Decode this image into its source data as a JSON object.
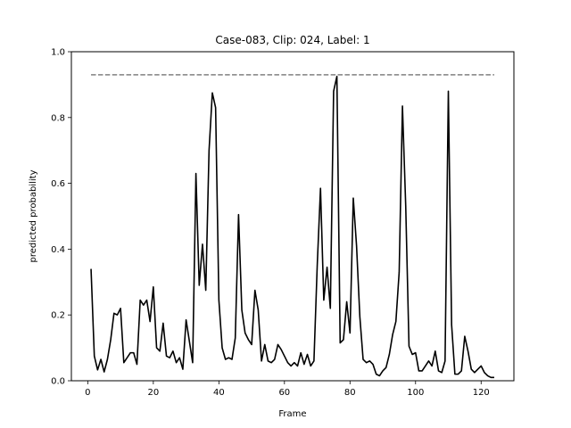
{
  "chart_data": {
    "type": "line",
    "title": "Case-083, Clip: 024, Label: 1",
    "xlabel": "Frame",
    "ylabel": "predicted probability",
    "xlim": [
      -5,
      130
    ],
    "ylim": [
      0.0,
      1.0
    ],
    "xticks": [
      0,
      20,
      40,
      60,
      80,
      100,
      120
    ],
    "yticks": [
      0.0,
      0.2,
      0.4,
      0.6,
      0.8,
      1.0
    ],
    "grid": false,
    "series": [
      {
        "color": "#000000",
        "x": [
          1,
          2,
          3,
          4,
          5,
          6,
          7,
          8,
          9,
          10,
          11,
          12,
          13,
          14,
          15,
          16,
          17,
          18,
          19,
          20,
          21,
          22,
          23,
          24,
          25,
          26,
          27,
          28,
          29,
          30,
          31,
          32,
          33,
          34,
          35,
          36,
          37,
          38,
          39,
          40,
          41,
          42,
          43,
          44,
          45,
          46,
          47,
          48,
          49,
          50,
          51,
          52,
          53,
          54,
          55,
          56,
          57,
          58,
          59,
          60,
          61,
          62,
          63,
          64,
          65,
          66,
          67,
          68,
          69,
          70,
          71,
          72,
          73,
          74,
          75,
          76,
          77,
          78,
          79,
          80,
          81,
          82,
          83,
          84,
          85,
          86,
          87,
          88,
          89,
          90,
          91,
          92,
          93,
          94,
          95,
          96,
          97,
          98,
          99,
          100,
          101,
          102,
          103,
          104,
          105,
          106,
          107,
          108,
          109,
          110,
          111,
          112,
          113,
          114,
          115,
          116,
          117,
          118,
          119,
          120,
          121,
          122,
          123,
          124
        ],
        "y": [
          0.34,
          0.075,
          0.033,
          0.065,
          0.027,
          0.065,
          0.125,
          0.205,
          0.2,
          0.22,
          0.055,
          0.07,
          0.085,
          0.085,
          0.05,
          0.245,
          0.23,
          0.245,
          0.18,
          0.285,
          0.1,
          0.09,
          0.175,
          0.075,
          0.07,
          0.09,
          0.055,
          0.07,
          0.035,
          0.185,
          0.12,
          0.055,
          0.63,
          0.29,
          0.415,
          0.275,
          0.7,
          0.875,
          0.83,
          0.245,
          0.1,
          0.065,
          0.07,
          0.065,
          0.13,
          0.505,
          0.215,
          0.145,
          0.125,
          0.11,
          0.275,
          0.215,
          0.06,
          0.11,
          0.06,
          0.055,
          0.065,
          0.11,
          0.095,
          0.075,
          0.055,
          0.045,
          0.055,
          0.045,
          0.085,
          0.05,
          0.08,
          0.045,
          0.06,
          0.35,
          0.585,
          0.245,
          0.345,
          0.22,
          0.88,
          0.925,
          0.115,
          0.125,
          0.24,
          0.145,
          0.555,
          0.41,
          0.195,
          0.065,
          0.055,
          0.06,
          0.05,
          0.02,
          0.015,
          0.03,
          0.04,
          0.08,
          0.14,
          0.18,
          0.33,
          0.835,
          0.53,
          0.105,
          0.08,
          0.085,
          0.03,
          0.03,
          0.045,
          0.06,
          0.045,
          0.09,
          0.03,
          0.025,
          0.06,
          0.88,
          0.17,
          0.02,
          0.02,
          0.03,
          0.135,
          0.09,
          0.035,
          0.025,
          0.035,
          0.045,
          0.025,
          0.015,
          0.01,
          0.01
        ]
      },
      {
        "color": "#808080",
        "dashed": true,
        "x": [
          1,
          124
        ],
        "y": [
          0.93,
          0.93
        ]
      }
    ]
  }
}
